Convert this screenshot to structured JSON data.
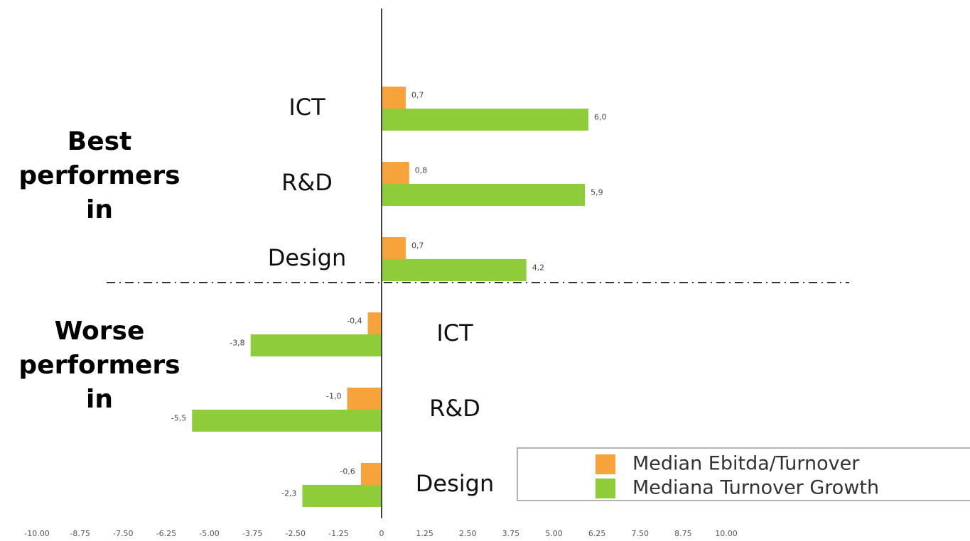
{
  "chart_data": {
    "type": "barh",
    "categories": [
      "ICT",
      "R&D",
      "Design",
      "ICT",
      "R&D",
      "Design"
    ],
    "series": [
      {
        "name": "Median Ebitda/Turnover",
        "color": "#f5a33a",
        "values": [
          0.7,
          0.8,
          0.7,
          -0.4,
          -1.0,
          -0.6
        ],
        "value_labels": [
          "0,7",
          "0,8",
          "0,7",
          "-0,4",
          "-1,0",
          "-0,6"
        ]
      },
      {
        "name": "Mediana Turnover Growth",
        "color": "#8fcc3a",
        "values": [
          6.0,
          5.9,
          4.2,
          -3.8,
          -5.5,
          -2.3
        ],
        "value_labels": [
          "6,0",
          "5,9",
          "4,2",
          "-3,8",
          "-5,5",
          "-2,3"
        ]
      }
    ],
    "xlim": [
      -10,
      10
    ],
    "xticks": [
      {
        "value": -10,
        "label": "-10.00"
      },
      -8.75,
      {
        "value": -7.5,
        "label": "-7.50"
      },
      -6.25,
      {
        "value": -5,
        "label": "-5.00"
      },
      -3.75,
      {
        "value": -2.5,
        "label": "-2.50"
      },
      -1.25,
      0,
      1.25,
      {
        "value": 2.5,
        "label": "2.50"
      },
      3.75,
      {
        "value": 5,
        "label": "5.00"
      },
      6.25,
      {
        "value": 7.5,
        "label": "7.50"
      },
      8.75,
      {
        "value": 10,
        "label": "10.00"
      }
    ],
    "annotations": [
      "Best performers in",
      "Worse performers in"
    ],
    "grid": false,
    "legend": "lower right"
  }
}
